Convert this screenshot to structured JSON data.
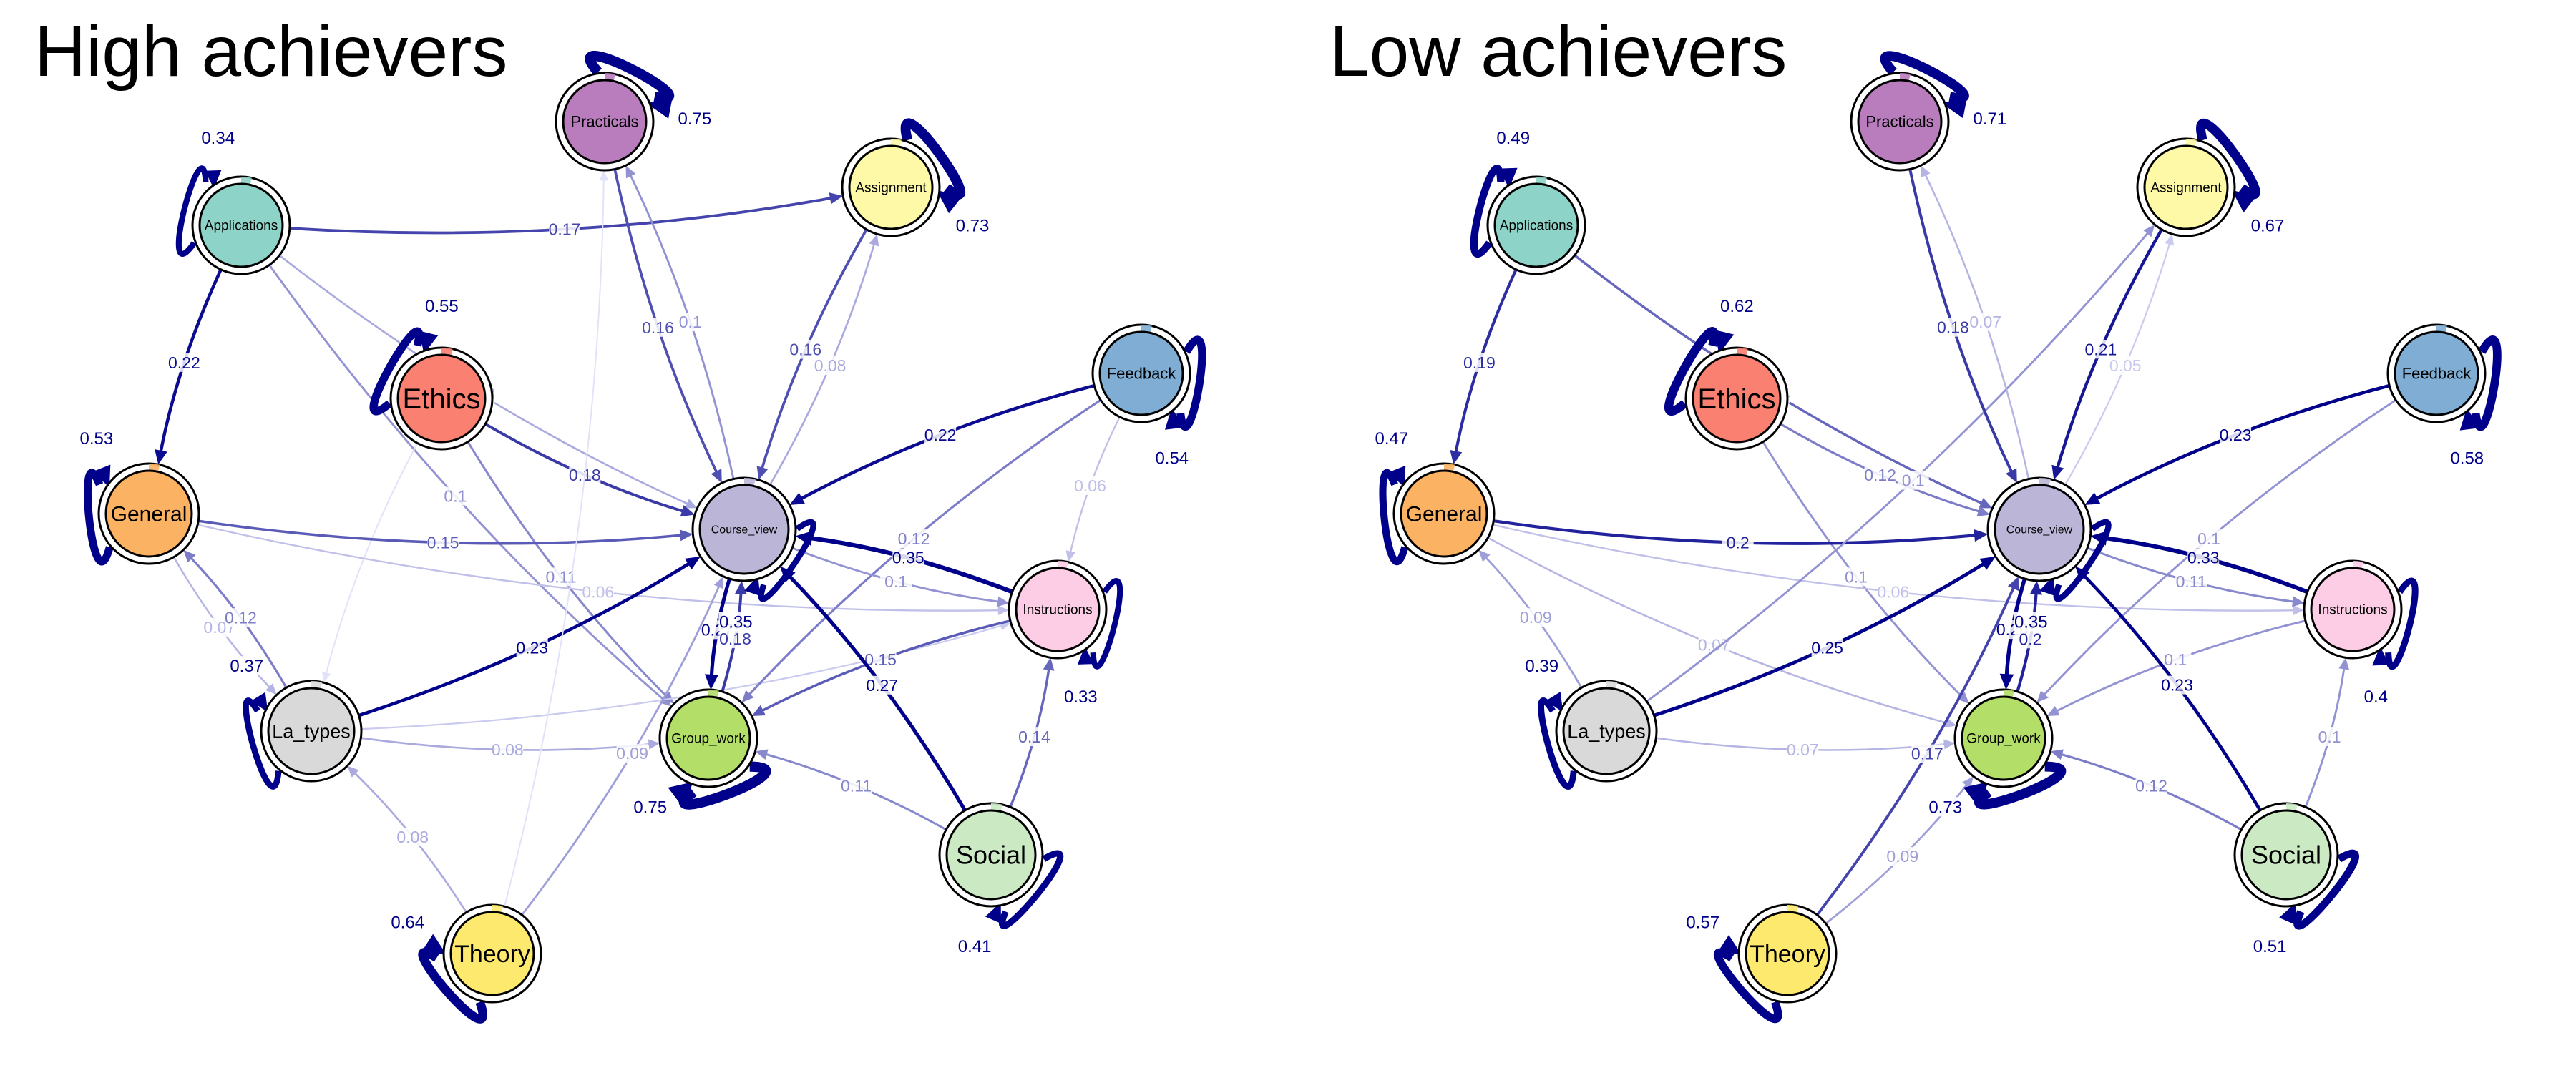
{
  "panels": [
    {
      "title": "High achievers",
      "nodes": [
        {
          "id": "Practicals",
          "label": "Practicals",
          "color": "#b97cbd",
          "self": 0.75
        },
        {
          "id": "Assignment",
          "label": "Assignment",
          "color": "#fdf9a7",
          "self": 0.73
        },
        {
          "id": "Applications",
          "label": "Applications",
          "color": "#8ed3c7",
          "self": 0.34
        },
        {
          "id": "Feedback",
          "label": "Feedback",
          "color": "#7fadd4",
          "self": 0.54
        },
        {
          "id": "Ethics",
          "label": "Ethics",
          "color": "#fa8071",
          "self": 0.55
        },
        {
          "id": "General",
          "label": "General",
          "color": "#fbb263",
          "self": 0.53
        },
        {
          "id": "Course_view",
          "label": "Course_view",
          "color": "#bbb6d8",
          "self": 0.35
        },
        {
          "id": "Instructions",
          "label": "Instructions",
          "color": "#fccde5",
          "self": 0.33
        },
        {
          "id": "La_types",
          "label": "La_types",
          "color": "#d9d9d9",
          "self": 0.37
        },
        {
          "id": "Group_work",
          "label": "Group_work",
          "color": "#b3de68",
          "self": 0.75
        },
        {
          "id": "Social",
          "label": "Social",
          "color": "#cbeac4",
          "self": 0.41
        },
        {
          "id": "Theory",
          "label": "Theory",
          "color": "#fee96f",
          "self": 0.64
        }
      ],
      "edges": [
        {
          "from": "Applications",
          "to": "Assignment",
          "w": 0.17,
          "label": "0.17"
        },
        {
          "from": "Applications",
          "to": "General",
          "w": 0.22,
          "label": "0.22"
        },
        {
          "from": "Applications",
          "to": "Course_view",
          "w": 0.08,
          "label": "0.08"
        },
        {
          "from": "Applications",
          "to": "Group_work",
          "w": 0.1,
          "label": "0.1"
        },
        {
          "from": "Ethics",
          "to": "Course_view",
          "w": 0.18,
          "label": "0.18"
        },
        {
          "from": "Ethics",
          "to": "Group_work",
          "w": 0.11,
          "label": "0.11"
        },
        {
          "from": "Ethics",
          "to": "La_types",
          "w": 0.03,
          "label": ""
        },
        {
          "from": "General",
          "to": "Course_view",
          "w": 0.15,
          "label": "0.15"
        },
        {
          "from": "General",
          "to": "La_types",
          "w": 0.07,
          "label": "0.07"
        },
        {
          "from": "General",
          "to": "Instructions",
          "w": 0.06,
          "label": "0.06"
        },
        {
          "from": "La_types",
          "to": "General",
          "w": 0.12,
          "label": "0.12"
        },
        {
          "from": "La_types",
          "to": "Course_view",
          "w": 0.23,
          "label": "0.23"
        },
        {
          "from": "La_types",
          "to": "Group_work",
          "w": 0.08,
          "label": "0.08"
        },
        {
          "from": "La_types",
          "to": "Instructions",
          "w": 0.05,
          "label": ""
        },
        {
          "from": "Practicals",
          "to": "Course_view",
          "w": 0.16,
          "label": "0.16"
        },
        {
          "from": "Course_view",
          "to": "Practicals",
          "w": 0.1,
          "label": "0.1"
        },
        {
          "from": "Assignment",
          "to": "Course_view",
          "w": 0.16,
          "label": "0.16"
        },
        {
          "from": "Course_view",
          "to": "Assignment",
          "w": 0.08,
          "label": "0.08"
        },
        {
          "from": "Feedback",
          "to": "Course_view",
          "w": 0.22,
          "label": "0.22"
        },
        {
          "from": "Feedback",
          "to": "Group_work",
          "w": 0.12,
          "label": "0.12"
        },
        {
          "from": "Feedback",
          "to": "Instructions",
          "w": 0.06,
          "label": "0.06"
        },
        {
          "from": "Instructions",
          "to": "Course_view",
          "w": 0.35,
          "label": "0.35"
        },
        {
          "from": "Instructions",
          "to": "Group_work",
          "w": 0.15,
          "label": "0.15"
        },
        {
          "from": "Course_view",
          "to": "Instructions",
          "w": 0.1,
          "label": "0.1"
        },
        {
          "from": "Course_view",
          "to": "Group_work",
          "w": 0.27,
          "label": "0.27"
        },
        {
          "from": "Group_work",
          "to": "Course_view",
          "w": 0.18,
          "label": "0.18"
        },
        {
          "from": "Social",
          "to": "Course_view",
          "w": 0.27,
          "label": "0.27"
        },
        {
          "from": "Social",
          "to": "Instructions",
          "w": 0.14,
          "label": "0.14"
        },
        {
          "from": "Social",
          "to": "Group_work",
          "w": 0.11,
          "label": "0.11"
        },
        {
          "from": "Theory",
          "to": "La_types",
          "w": 0.08,
          "label": "0.08"
        },
        {
          "from": "Theory",
          "to": "Course_view",
          "w": 0.09,
          "label": "0.09"
        },
        {
          "from": "Theory",
          "to": "Practicals",
          "w": 0.03,
          "label": ""
        }
      ]
    },
    {
      "title": "Low achievers",
      "nodes": [
        {
          "id": "Practicals",
          "label": "Practicals",
          "color": "#b97cbd",
          "self": 0.71
        },
        {
          "id": "Assignment",
          "label": "Assignment",
          "color": "#fdf9a7",
          "self": 0.67
        },
        {
          "id": "Applications",
          "label": "Applications",
          "color": "#8ed3c7",
          "self": 0.49
        },
        {
          "id": "Feedback",
          "label": "Feedback",
          "color": "#7fadd4",
          "self": 0.58
        },
        {
          "id": "Ethics",
          "label": "Ethics",
          "color": "#fa8071",
          "self": 0.62
        },
        {
          "id": "General",
          "label": "General",
          "color": "#fbb263",
          "self": 0.47
        },
        {
          "id": "Course_view",
          "label": "Course_view",
          "color": "#bbb6d8",
          "self": 0.35
        },
        {
          "id": "Instructions",
          "label": "Instructions",
          "color": "#fccde5",
          "self": 0.4
        },
        {
          "id": "La_types",
          "label": "La_types",
          "color": "#d9d9d9",
          "self": 0.39
        },
        {
          "id": "Group_work",
          "label": "Group_work",
          "color": "#b3de68",
          "self": 0.73
        },
        {
          "id": "Social",
          "label": "Social",
          "color": "#cbeac4",
          "self": 0.51
        },
        {
          "id": "Theory",
          "label": "Theory",
          "color": "#fee96f",
          "self": 0.57
        }
      ],
      "edges": [
        {
          "from": "Applications",
          "to": "General",
          "w": 0.19,
          "label": "0.19"
        },
        {
          "from": "Applications",
          "to": "Course_view",
          "w": 0.14,
          "label": "0.14"
        },
        {
          "from": "Ethics",
          "to": "Course_view",
          "w": 0.12,
          "label": "0.12"
        },
        {
          "from": "Ethics",
          "to": "Group_work",
          "w": 0.1,
          "label": "0.1"
        },
        {
          "from": "General",
          "to": "Course_view",
          "w": 0.2,
          "label": "0.2"
        },
        {
          "from": "General",
          "to": "Group_work",
          "w": 0.07,
          "label": "0.07"
        },
        {
          "from": "General",
          "to": "Instructions",
          "w": 0.06,
          "label": "0.06"
        },
        {
          "from": "La_types",
          "to": "General",
          "w": 0.09,
          "label": "0.09"
        },
        {
          "from": "La_types",
          "to": "Course_view",
          "w": 0.25,
          "label": "0.25"
        },
        {
          "from": "La_types",
          "to": "Group_work",
          "w": 0.07,
          "label": "0.07"
        },
        {
          "from": "La_types",
          "to": "Assignment",
          "w": 0.1,
          "label": "0.1"
        },
        {
          "from": "Practicals",
          "to": "Course_view",
          "w": 0.18,
          "label": "0.18"
        },
        {
          "from": "Course_view",
          "to": "Practicals",
          "w": 0.07,
          "label": "0.07"
        },
        {
          "from": "Assignment",
          "to": "Course_view",
          "w": 0.21,
          "label": "0.21"
        },
        {
          "from": "Course_view",
          "to": "Assignment",
          "w": 0.05,
          "label": "0.05"
        },
        {
          "from": "Feedback",
          "to": "Course_view",
          "w": 0.23,
          "label": "0.23"
        },
        {
          "from": "Feedback",
          "to": "Group_work",
          "w": 0.1,
          "label": "0.1"
        },
        {
          "from": "Instructions",
          "to": "Course_view",
          "w": 0.33,
          "label": "0.33"
        },
        {
          "from": "Instructions",
          "to": "Group_work",
          "w": 0.1,
          "label": "0.1"
        },
        {
          "from": "Course_view",
          "to": "Instructions",
          "w": 0.11,
          "label": "0.11"
        },
        {
          "from": "Course_view",
          "to": "Group_work",
          "w": 0.29,
          "label": "0.29"
        },
        {
          "from": "Group_work",
          "to": "Course_view",
          "w": 0.2,
          "label": "0.2"
        },
        {
          "from": "Social",
          "to": "Course_view",
          "w": 0.23,
          "label": "0.23"
        },
        {
          "from": "Social",
          "to": "Instructions",
          "w": 0.1,
          "label": "0.1"
        },
        {
          "from": "Social",
          "to": "Group_work",
          "w": 0.12,
          "label": "0.12"
        },
        {
          "from": "Theory",
          "to": "Course_view",
          "w": 0.17,
          "label": "0.17"
        },
        {
          "from": "Theory",
          "to": "Group_work",
          "w": 0.09,
          "label": "0.09"
        }
      ]
    }
  ]
}
